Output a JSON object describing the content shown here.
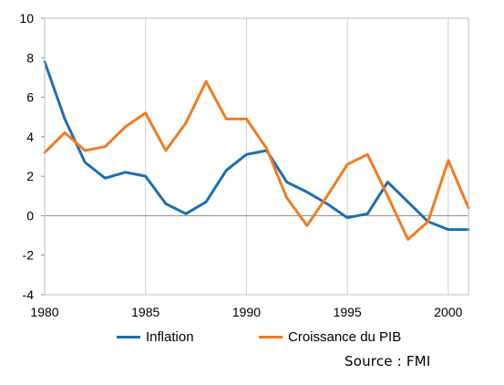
{
  "chart_data": {
    "type": "line",
    "title": "",
    "xlabel": "",
    "ylabel": "",
    "x": [
      1980,
      1981,
      1982,
      1983,
      1984,
      1985,
      1986,
      1987,
      1988,
      1989,
      1990,
      1991,
      1992,
      1993,
      1994,
      1995,
      1996,
      1997,
      1998,
      1999,
      2000,
      2001
    ],
    "xlim": [
      1980,
      2001
    ],
    "ylim": [
      -4,
      10
    ],
    "x_ticks": [
      "1980",
      "1985",
      "1990",
      "1995",
      "2000"
    ],
    "y_ticks": [
      "-4",
      "-2",
      "0",
      "2",
      "4",
      "6",
      "8",
      "10"
    ],
    "grid": "vertical",
    "legend_position": "bottom",
    "series": [
      {
        "name": "Inflation",
        "color": "#1f6fad",
        "values": [
          7.8,
          4.9,
          2.7,
          1.9,
          2.2,
          2.0,
          0.6,
          0.1,
          0.7,
          2.3,
          3.1,
          3.3,
          1.7,
          1.2,
          0.6,
          -0.1,
          0.1,
          1.7,
          0.7,
          -0.3,
          -0.7,
          -0.7
        ]
      },
      {
        "name": "Croissance du PIB",
        "color": "#ef7d22",
        "values": [
          3.2,
          4.2,
          3.3,
          3.5,
          4.5,
          5.2,
          3.3,
          4.7,
          6.8,
          4.9,
          4.9,
          3.4,
          0.9,
          -0.5,
          1.0,
          2.6,
          3.1,
          1.0,
          -1.2,
          -0.3,
          2.8,
          0.4
        ]
      }
    ]
  },
  "source": "Source : FMI"
}
